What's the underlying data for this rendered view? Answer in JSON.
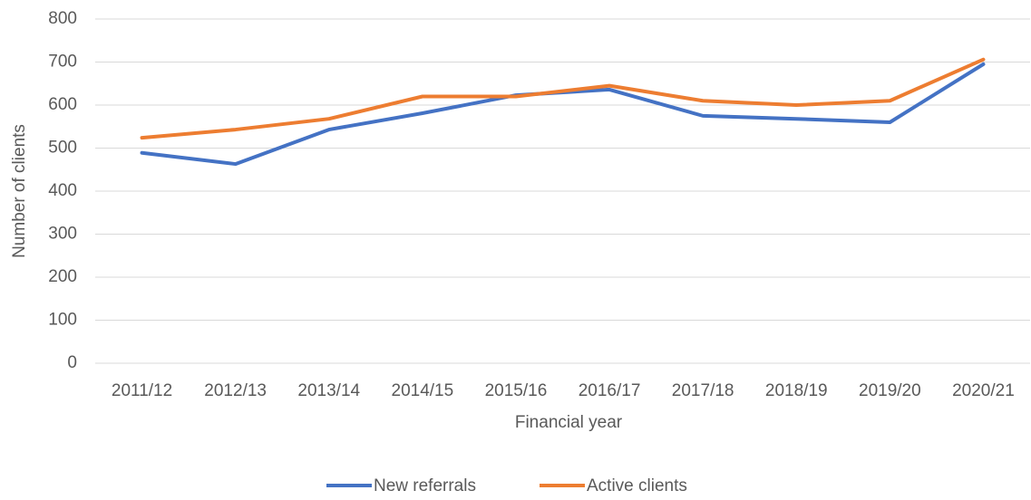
{
  "chart_data": {
    "type": "line",
    "x_label": "Financial year",
    "y_label": "Number of clients",
    "categories": [
      "2011/12",
      "2012/13",
      "2013/14",
      "2014/15",
      "2015/16",
      "2016/17",
      "2017/18",
      "2018/19",
      "2019/20",
      "2020/21"
    ],
    "series": [
      {
        "name": "New referrals",
        "color": "#4472c4",
        "values": [
          489,
          463,
          543,
          581,
          623,
          636,
          575,
          568,
          560,
          695
        ]
      },
      {
        "name": "Active clients",
        "color": "#ed7d31",
        "values": [
          524,
          543,
          568,
          620,
          620,
          645,
          610,
          600,
          610,
          706
        ]
      }
    ],
    "ylim": [
      0,
      800
    ],
    "yticks": [
      0,
      100,
      200,
      300,
      400,
      500,
      600,
      700,
      800
    ],
    "grid": true,
    "legend": "bottom"
  }
}
